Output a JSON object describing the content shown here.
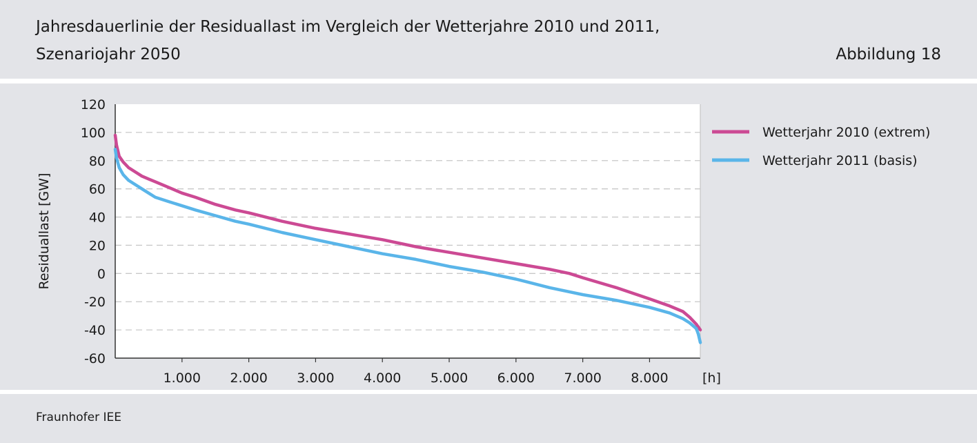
{
  "header": {
    "title_line1": "Jahresdauerlinie der Residuallast im Vergleich der Wetterjahre 2010 und 2011,",
    "title_line2": "Szenariojahr 2050",
    "figure_label": "Abbildung 18"
  },
  "footer": {
    "source": "Fraunhofer IEE"
  },
  "chart_data": {
    "type": "line",
    "title": "Jahresdauerlinie der Residuallast im Vergleich der Wetterjahre 2010 und 2011, Szenariojahr 2050",
    "xlabel": "[h]",
    "ylabel": "Residuallast [GW]",
    "xlim": [
      0,
      8760
    ],
    "ylim": [
      -60,
      120
    ],
    "x_ticks": [
      1000,
      2000,
      3000,
      4000,
      5000,
      6000,
      7000,
      8000
    ],
    "x_tick_labels": [
      "1.000",
      "2.000",
      "3.000",
      "4.000",
      "5.000",
      "6.000",
      "7.000",
      "8.000"
    ],
    "y_ticks": [
      120,
      100,
      80,
      60,
      40,
      20,
      0,
      -20,
      -40,
      -60
    ],
    "y_tick_labels": [
      "120",
      "100",
      "80",
      "60",
      "40",
      "20",
      "0",
      "-20",
      "-40",
      "-60"
    ],
    "grid": "horizontal dashed",
    "legend_position": "right",
    "series": [
      {
        "name": "Wetterjahr 2010 (extrem)",
        "color": "#cc4a94",
        "x": [
          0,
          20,
          60,
          120,
          200,
          300,
          400,
          500,
          600,
          800,
          1000,
          1200,
          1500,
          1800,
          2000,
          2500,
          3000,
          3500,
          4000,
          4500,
          5000,
          5500,
          6000,
          6500,
          6800,
          7000,
          7500,
          8000,
          8300,
          8500,
          8600,
          8700,
          8760
        ],
        "y": [
          98,
          91,
          83,
          79,
          75,
          72,
          69,
          67,
          65,
          61,
          57,
          54,
          49,
          45,
          43,
          37,
          32,
          28,
          24,
          19,
          15,
          11,
          7,
          3,
          0,
          -3,
          -10,
          -18,
          -23,
          -27,
          -31,
          -36,
          -40
        ]
      },
      {
        "name": "Wetterjahr 2011 (basis)",
        "color": "#5ab5e9",
        "x": [
          0,
          20,
          60,
          120,
          200,
          300,
          400,
          500,
          600,
          800,
          1000,
          1200,
          1500,
          1800,
          2000,
          2500,
          3000,
          3500,
          4000,
          4500,
          5000,
          5500,
          6000,
          6500,
          6800,
          7000,
          7500,
          8000,
          8300,
          8500,
          8600,
          8700,
          8730,
          8760
        ],
        "y": [
          88,
          82,
          75,
          70,
          66,
          63,
          60,
          57,
          54,
          51,
          48,
          45,
          41,
          37,
          35,
          29,
          24,
          19,
          14,
          10,
          5,
          1,
          -4,
          -10,
          -13,
          -15,
          -19,
          -24,
          -28,
          -32,
          -35,
          -39,
          -43,
          -49
        ]
      }
    ]
  }
}
